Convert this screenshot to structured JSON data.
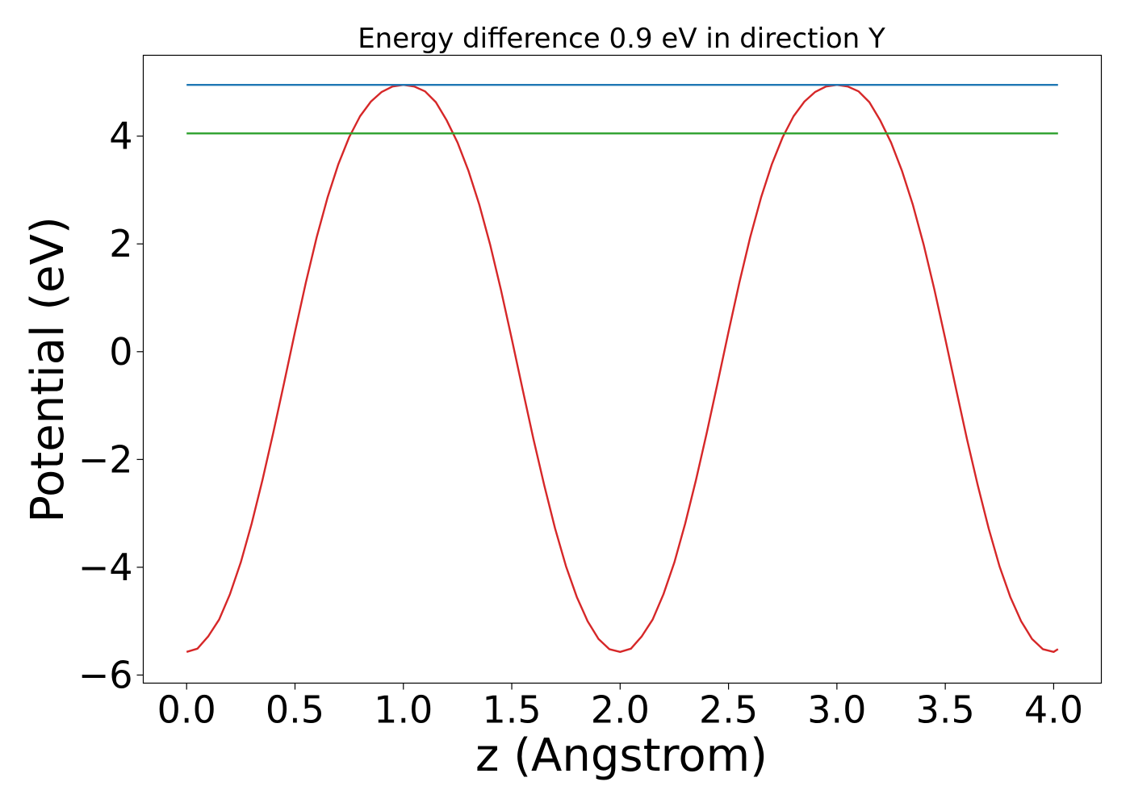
{
  "chart_data": {
    "type": "line",
    "title": "Energy difference 0.9 eV in direction Y",
    "xlabel": "z (Angstrom)",
    "ylabel": "Potential (eV)",
    "xlim": [
      -0.2,
      4.22
    ],
    "ylim": [
      -6.15,
      5.5
    ],
    "x_ticks": [
      0.0,
      0.5,
      1.0,
      1.5,
      2.0,
      2.5,
      3.0,
      3.5,
      4.0
    ],
    "x_tick_labels": [
      "0.0",
      "0.5",
      "1.0",
      "1.5",
      "2.0",
      "2.5",
      "3.0",
      "3.5",
      "4.0"
    ],
    "y_ticks": [
      -6,
      -4,
      -2,
      0,
      2,
      4
    ],
    "y_tick_labels": [
      "−6",
      "−4",
      "−2",
      "0",
      "2",
      "4"
    ],
    "grid": false,
    "legend": "none",
    "series": [
      {
        "color": "#d62728",
        "x": [
          0.0,
          0.05,
          0.1,
          0.15,
          0.2,
          0.25,
          0.3,
          0.35,
          0.4,
          0.45,
          0.5,
          0.55,
          0.6,
          0.65,
          0.7,
          0.75,
          0.8,
          0.85,
          0.9,
          0.95,
          1.0,
          1.05,
          1.1,
          1.15,
          1.2,
          1.25,
          1.3,
          1.35,
          1.4,
          1.45,
          1.5,
          1.55,
          1.6,
          1.65,
          1.7,
          1.75,
          1.8,
          1.85,
          1.9,
          1.95,
          2.0,
          2.05,
          2.1,
          2.15,
          2.2,
          2.25,
          2.3,
          2.35,
          2.4,
          2.45,
          2.5,
          2.55,
          2.6,
          2.65,
          2.7,
          2.75,
          2.8,
          2.85,
          2.9,
          2.95,
          3.0,
          3.05,
          3.1,
          3.15,
          3.2,
          3.25,
          3.3,
          3.35,
          3.4,
          3.45,
          3.5,
          3.55,
          3.6,
          3.65,
          3.7,
          3.75,
          3.8,
          3.85,
          3.9,
          3.95,
          4.0,
          4.02
        ],
        "y": [
          -5.57,
          -5.51,
          -5.28,
          -4.97,
          -4.5,
          -3.91,
          -3.19,
          -2.38,
          -1.5,
          -0.57,
          0.37,
          1.28,
          2.12,
          2.86,
          3.48,
          3.98,
          4.37,
          4.64,
          4.82,
          4.92,
          4.95,
          4.92,
          4.83,
          4.63,
          4.29,
          3.88,
          3.36,
          2.73,
          1.99,
          1.15,
          0.24,
          -0.7,
          -1.62,
          -2.48,
          -3.28,
          -3.98,
          -4.55,
          -5.0,
          -5.33,
          -5.52,
          -5.57,
          -5.51,
          -5.28,
          -4.97,
          -4.5,
          -3.91,
          -3.19,
          -2.38,
          -1.5,
          -0.57,
          0.37,
          1.28,
          2.12,
          2.86,
          3.48,
          3.98,
          4.37,
          4.64,
          4.82,
          4.92,
          4.95,
          4.92,
          4.83,
          4.63,
          4.29,
          3.88,
          3.36,
          2.73,
          1.99,
          1.15,
          0.24,
          -0.7,
          -1.62,
          -2.48,
          -3.28,
          -3.98,
          -4.55,
          -5.0,
          -5.33,
          -5.52,
          -5.57,
          -5.52
        ]
      },
      {
        "color": "#1f77b4",
        "x": [
          0.0,
          4.02
        ],
        "y": [
          4.95,
          4.95
        ]
      },
      {
        "color": "#2ca02c",
        "x": [
          0.0,
          4.02
        ],
        "y": [
          4.05,
          4.05
        ]
      }
    ]
  }
}
